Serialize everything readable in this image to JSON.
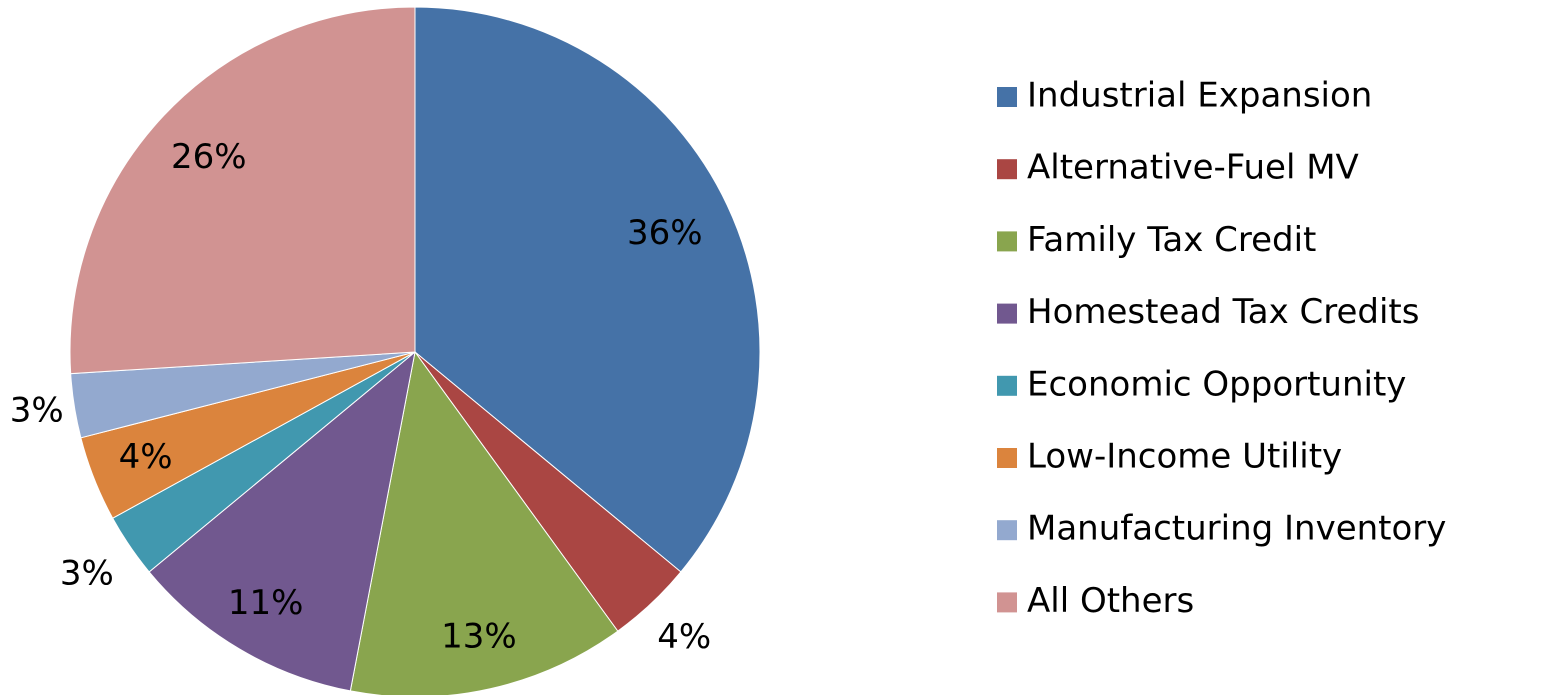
{
  "chart_data": {
    "type": "pie",
    "categories": [
      "Industrial Expansion",
      "Alternative-Fuel MV",
      "Family Tax Credit",
      "Homestead Tax Credits",
      "Economic Opportunity",
      "Low-Income Utility",
      "Manufacturing Inventory",
      "All Others"
    ],
    "values": [
      36,
      4,
      13,
      11,
      3,
      4,
      3,
      26
    ],
    "value_labels": [
      "36%",
      "4%",
      "13%",
      "11%",
      "3%",
      "4%",
      "3%",
      "26%"
    ],
    "colors": [
      "#4572a7",
      "#aa4643",
      "#89a54e",
      "#71588f",
      "#4198af",
      "#db843d",
      "#93a9cf",
      "#d19392"
    ],
    "legend": "right"
  }
}
